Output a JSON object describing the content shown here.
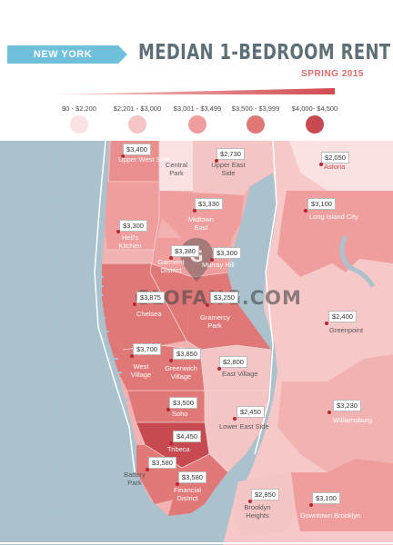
{
  "header": {
    "city": "NEW YORK",
    "title": "MEDIAN 1-BEDROOM RENT",
    "subtitle": "SPRING 2015"
  },
  "legend": [
    {
      "label": "$0 - $2,200",
      "color": "#fbe1e1"
    },
    {
      "label": "$2,201 - $3,000",
      "color": "#f5c4c4"
    },
    {
      "label": "$3,001 - $3,499",
      "color": "#ef9d9d"
    },
    {
      "label": "$3,500 - $3,999",
      "color": "#e07878"
    },
    {
      "label": "$4,000- $4,500",
      "color": "#c64a4f"
    }
  ],
  "colors": {
    "water": "#a9c2ce",
    "accent": "#6ec0db",
    "title": "#5e6f78",
    "pin": "#b82530"
  },
  "neighborhoods": [
    {
      "name": "Upper West Side",
      "rent": "$3,400"
    },
    {
      "name": "Central Park",
      "rent": ""
    },
    {
      "name": "Upper East Side",
      "rent": "$2,730"
    },
    {
      "name": "Astoria",
      "rent": "$2,050"
    },
    {
      "name": "Midtown East",
      "rent": "$3,330"
    },
    {
      "name": "Long Island City",
      "rent": "$3,100"
    },
    {
      "name": "Hell's Kitchen",
      "rent": "$3,300"
    },
    {
      "name": "Garment District",
      "rent": "$3,380"
    },
    {
      "name": "Murray Hill",
      "rent": "$3,300"
    },
    {
      "name": "Chelsea",
      "rent": "$3,875"
    },
    {
      "name": "Gramercy Park",
      "rent": "$3,250"
    },
    {
      "name": "Greenpoint",
      "rent": "$2,400"
    },
    {
      "name": "West Village",
      "rent": "$3,700"
    },
    {
      "name": "Greenwich Village",
      "rent": "$3,850"
    },
    {
      "name": "East Village",
      "rent": "$2,800"
    },
    {
      "name": "Soho",
      "rent": "$3,500"
    },
    {
      "name": "Williamsburg",
      "rent": "$3,230"
    },
    {
      "name": "Lower East Side",
      "rent": "$2,450"
    },
    {
      "name": "Tribeca",
      "rent": "$4,450"
    },
    {
      "name": "Battery Park",
      "rent": "$3,580"
    },
    {
      "name": "Financial District",
      "rent": "$3,580"
    },
    {
      "name": "Brooklyn Heights",
      "rent": "$2,850"
    },
    {
      "name": "Downtown Brooklyn",
      "rent": "$3,100"
    }
  ],
  "watermark": "GLOFANG.COM"
}
